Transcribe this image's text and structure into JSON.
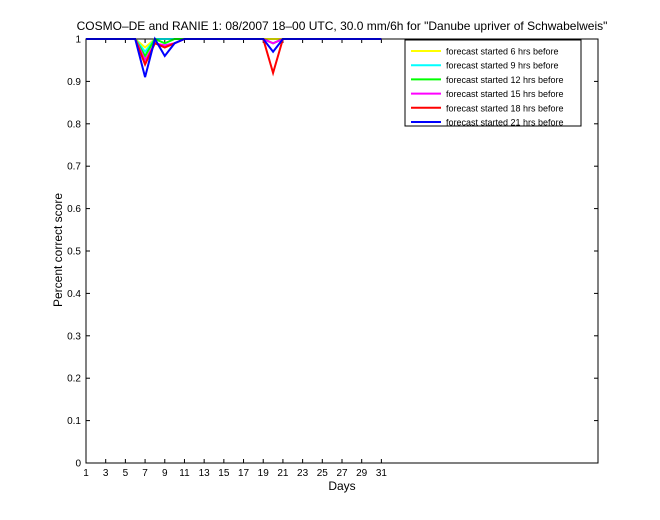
{
  "chart_data": {
    "type": "line",
    "title": "COSMO–DE and RANIE 1: 08/2007 18–00 UTC, 30.0 mm/6h for \"Danube upriver of Schwabelweis\"",
    "xlabel": "Days",
    "ylabel": "Percent correct score",
    "xlim": [
      1,
      53
    ],
    "ylim": [
      0,
      1
    ],
    "xticks": [
      1,
      3,
      5,
      7,
      9,
      11,
      13,
      15,
      17,
      19,
      21,
      23,
      25,
      27,
      29,
      31
    ],
    "yticks": [
      0,
      0.1,
      0.2,
      0.3,
      0.4,
      0.5,
      0.6,
      0.7,
      0.8,
      0.9,
      1
    ],
    "ytick_labels": [
      "0",
      "0.1",
      "0.2",
      "0.3",
      "0.4",
      "0.5",
      "0.6",
      "0.7",
      "0.8",
      "0.9",
      "1"
    ],
    "grid": false,
    "legend_position": "top-right",
    "x": [
      1,
      2,
      3,
      4,
      5,
      6,
      7,
      8,
      9,
      10,
      11,
      12,
      13,
      14,
      15,
      16,
      17,
      18,
      19,
      20,
      21,
      22,
      23,
      24,
      25,
      26,
      27,
      28,
      29,
      30,
      31
    ],
    "series": [
      {
        "name": "forecast started 6 hrs before",
        "color": "#ffff00",
        "values": [
          1,
          1,
          1,
          1,
          1,
          1,
          0.98,
          1,
          1,
          1,
          1,
          1,
          1,
          1,
          1,
          1,
          1,
          1,
          1,
          1,
          1,
          1,
          1,
          1,
          1,
          1,
          1,
          1,
          1,
          1,
          1
        ]
      },
      {
        "name": "forecast started 9 hrs before",
        "color": "#00ffff",
        "values": [
          1,
          1,
          1,
          1,
          1,
          1,
          0.97,
          1,
          1,
          1,
          1,
          1,
          1,
          1,
          1,
          1,
          1,
          1,
          1,
          0.99,
          1,
          1,
          1,
          1,
          1,
          1,
          1,
          1,
          1,
          1,
          1
        ]
      },
      {
        "name": "forecast started 12 hrs before",
        "color": "#00ff00",
        "values": [
          1,
          1,
          1,
          1,
          1,
          1,
          0.96,
          1,
          0.99,
          1,
          1,
          1,
          1,
          1,
          1,
          1,
          1,
          1,
          1,
          0.99,
          1,
          1,
          1,
          1,
          1,
          1,
          1,
          1,
          1,
          1,
          1
        ]
      },
      {
        "name": "forecast started 15 hrs before",
        "color": "#ff00ff",
        "values": [
          1,
          1,
          1,
          1,
          1,
          1,
          0.95,
          0.99,
          0.985,
          0.99,
          1,
          1,
          1,
          1,
          1,
          1,
          1,
          1,
          1,
          0.99,
          1,
          1,
          1,
          1,
          1,
          1,
          1,
          1,
          1,
          1,
          1
        ]
      },
      {
        "name": "forecast started 18 hrs before",
        "color": "#ff0000",
        "values": [
          1,
          1,
          1,
          1,
          1,
          1,
          0.94,
          0.99,
          0.98,
          0.99,
          1,
          1,
          1,
          1,
          1,
          1,
          1,
          1,
          1,
          0.92,
          1,
          1,
          1,
          1,
          1,
          1,
          1,
          1,
          1,
          1,
          1
        ]
      },
      {
        "name": "forecast started 21 hrs before",
        "color": "#0000ff",
        "values": [
          1,
          1,
          1,
          1,
          1,
          1,
          0.91,
          1,
          0.96,
          0.99,
          1,
          1,
          1,
          1,
          1,
          1,
          1,
          1,
          1,
          0.97,
          1,
          1,
          1,
          1,
          1,
          1,
          1,
          1,
          1,
          1,
          1
        ]
      }
    ]
  }
}
